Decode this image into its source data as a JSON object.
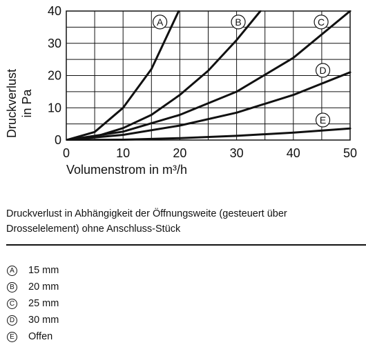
{
  "chart_data": {
    "type": "line",
    "xlabel": "Volumenstrom in m³/h",
    "ylabel_lines": [
      "Druckverlust",
      "in Pa"
    ],
    "xlim": [
      0,
      50
    ],
    "ylim": [
      0,
      40
    ],
    "xticks": [
      0,
      10,
      20,
      30,
      40,
      50
    ],
    "yticks": [
      0,
      10,
      20,
      30,
      40
    ],
    "grid": true,
    "series": [
      {
        "name": "A",
        "x": [
          0,
          5,
          10,
          15,
          19.8
        ],
        "y": [
          0,
          2.5,
          10,
          22,
          40
        ]
      },
      {
        "name": "B",
        "x": [
          0,
          5,
          10,
          15,
          20,
          25,
          30,
          34.2
        ],
        "y": [
          0,
          1,
          3.7,
          7.8,
          14,
          21.5,
          31,
          40
        ]
      },
      {
        "name": "C",
        "x": [
          0,
          10,
          20,
          30,
          40,
          50
        ],
        "y": [
          0,
          2.6,
          7.8,
          15,
          25.5,
          40
        ]
      },
      {
        "name": "D",
        "x": [
          0,
          10,
          20,
          30,
          40,
          50
        ],
        "y": [
          0,
          1.6,
          4.5,
          8.5,
          14,
          21
        ]
      },
      {
        "name": "E",
        "x": [
          0,
          10,
          20,
          30,
          40,
          50
        ],
        "y": [
          0,
          0.1,
          0.6,
          1.3,
          2.3,
          3.6
        ]
      }
    ],
    "curve_labels": [
      {
        "letter": "A",
        "x": 16.5,
        "y": 36.6
      },
      {
        "letter": "B",
        "x": 30.3,
        "y": 36.6
      },
      {
        "letter": "C",
        "x": 44.9,
        "y": 36.6
      },
      {
        "letter": "D",
        "x": 45.2,
        "y": 21.6
      },
      {
        "letter": "E",
        "x": 45.2,
        "y": 6.2
      }
    ]
  },
  "caption": "Druckverlust in Abhängigkeit der Öffnungsweite (gesteuert über Drosselelement) ohne Anschluss-Stück",
  "legend": [
    {
      "letter": "A",
      "text": "15 mm"
    },
    {
      "letter": "B",
      "text": "20 mm"
    },
    {
      "letter": "C",
      "text": "25 mm"
    },
    {
      "letter": "D",
      "text": "30 mm"
    },
    {
      "letter": "E",
      "text": "Offen"
    }
  ]
}
